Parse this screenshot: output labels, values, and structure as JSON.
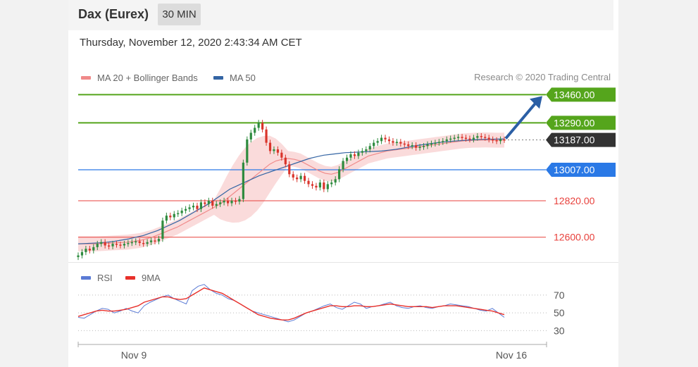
{
  "header": {
    "instrument": "Dax (Eurex)",
    "timeframe": "30 MIN"
  },
  "timestamp": "Thursday, November 12, 2020 2:43:34 AM CET",
  "legend": {
    "ma20_label": "MA 20 + Bollinger Bands",
    "ma50_label": "MA 50",
    "attribution": "Research © 2020 Trading Central"
  },
  "rsi_legend": {
    "rsi_label": "RSI",
    "ma_label": "9MA"
  },
  "colors": {
    "ma20": "#f08a8a",
    "ma50": "#3465a4",
    "target_green": "#55a51c",
    "pivot_blue": "#2a79e6",
    "support_red": "#e8413c",
    "last_price_bg": "#333333",
    "up_candle": "#2e8b3e",
    "down_candle": "#d9342b",
    "bollinger_fill": "#f9d2d2",
    "rsi_line": "#5b7bd5",
    "rsi_ma": "#e8302a"
  },
  "chart_data": [
    {
      "type": "candlestick",
      "x_labels": [
        "Nov 9",
        "Nov 16"
      ],
      "ylim": [
        12450,
        13500
      ],
      "levels": [
        {
          "value": 13460.0,
          "label": "13460.00",
          "kind": "target"
        },
        {
          "value": 13290.0,
          "label": "13290.00",
          "kind": "target"
        },
        {
          "value": 13187.0,
          "label": "13187.00",
          "kind": "last"
        },
        {
          "value": 13007.0,
          "label": "13007.00",
          "kind": "pivot"
        },
        {
          "value": 12820.0,
          "label": "12820.00",
          "kind": "support"
        },
        {
          "value": 12600.0,
          "label": "12600.00",
          "kind": "support"
        }
      ],
      "close": [
        12490,
        12510,
        12530,
        12520,
        12540,
        12560,
        12570,
        12550,
        12545,
        12560,
        12555,
        12550,
        12560,
        12565,
        12570,
        12575,
        12565,
        12560,
        12570,
        12580,
        12575,
        12590,
        12700,
        12730,
        12720,
        12740,
        12745,
        12760,
        12770,
        12780,
        12790,
        12770,
        12810,
        12800,
        12820,
        12790,
        12800,
        12810,
        12820,
        12805,
        12820,
        12815,
        12830,
        13050,
        13190,
        13230,
        13260,
        13290,
        13250,
        13170,
        13120,
        13130,
        13110,
        13080,
        13040,
        12980,
        12960,
        12950,
        12970,
        12940,
        12920,
        12910,
        12900,
        12930,
        12890,
        12920,
        12930,
        12950,
        13010,
        13060,
        13080,
        13100,
        13090,
        13110,
        13120,
        13130,
        13150,
        13170,
        13180,
        13200,
        13190,
        13180,
        13170,
        13175,
        13165,
        13160,
        13150,
        13155,
        13140,
        13145,
        13150,
        13160,
        13165,
        13170,
        13175,
        13180,
        13190,
        13195,
        13200,
        13205,
        13200,
        13195,
        13190,
        13200,
        13210,
        13205,
        13200,
        13190,
        13185,
        13180,
        13190,
        13187
      ],
      "ma20": [
        12560,
        12560,
        12560,
        12560,
        12562,
        12564,
        12566,
        12568,
        12570,
        12575,
        12580,
        12590,
        12600,
        12615,
        12630,
        12645,
        12660,
        12680,
        12700,
        12720,
        12740,
        12760,
        12780,
        12800,
        12830,
        12860,
        12890,
        12920,
        12950,
        12980,
        13010,
        13040,
        13060,
        13070,
        13075,
        13070,
        13060,
        13040,
        13020,
        13000,
        12985,
        12980,
        12990,
        13010,
        13030,
        13050,
        13070,
        13090,
        13100,
        13110,
        13120,
        13125,
        13130,
        13135,
        13140,
        13145,
        13150,
        13155,
        13160,
        13165,
        13170,
        13175,
        13180,
        13183,
        13185,
        13186,
        13187,
        13186,
        13185,
        13186
      ],
      "ma50": [
        12560,
        12562,
        12564,
        12566,
        12570,
        12575,
        12582,
        12590,
        12600,
        12610,
        12625,
        12640,
        12660,
        12680,
        12700,
        12725,
        12750,
        12775,
        12800,
        12830,
        12860,
        12890,
        12910,
        12930,
        12950,
        12970,
        12985,
        13000,
        13015,
        13030,
        13045,
        13060,
        13075,
        13085,
        13095,
        13100,
        13105,
        13110,
        13112,
        13114,
        13116,
        13118,
        13120,
        13125,
        13130,
        13138,
        13146,
        13154,
        13160,
        13166,
        13172,
        13176,
        13180,
        13183,
        13186,
        13188,
        13190,
        13191,
        13192,
        13193
      ],
      "tick_label": "13187.00"
    },
    {
      "type": "line",
      "title": "",
      "y_ticks": [
        70,
        50,
        30
      ],
      "ylim": [
        20,
        85
      ],
      "series": [
        {
          "name": "RSI",
          "values": [
            45,
            44,
            48,
            52,
            55,
            54,
            50,
            52,
            55,
            52,
            50,
            58,
            62,
            65,
            68,
            70,
            66,
            63,
            60,
            75,
            80,
            82,
            76,
            72,
            70,
            66,
            64,
            60,
            56,
            52,
            50,
            48,
            46,
            44,
            42,
            40,
            42,
            46,
            50,
            52,
            55,
            58,
            60,
            56,
            54,
            58,
            62,
            60,
            55,
            57,
            58,
            60,
            62,
            58,
            56,
            55,
            57,
            58,
            56,
            55,
            57,
            58,
            60,
            59,
            58,
            57,
            55,
            53,
            52,
            55,
            50,
            45
          ]
        },
        {
          "name": "9MA",
          "values": [
            46,
            48,
            50,
            52,
            53,
            52,
            52,
            53,
            54,
            56,
            58,
            62,
            64,
            66,
            68,
            68,
            66,
            65,
            66,
            70,
            74,
            78,
            76,
            74,
            72,
            68,
            64,
            60,
            56,
            52,
            48,
            46,
            44,
            43,
            42,
            42,
            44,
            47,
            50,
            52,
            54,
            56,
            58,
            58,
            57,
            57,
            58,
            58,
            57,
            57,
            58,
            59,
            60,
            59,
            58,
            57,
            57,
            57,
            57,
            56,
            57,
            58,
            58,
            58,
            57,
            56,
            55,
            54,
            53,
            52,
            50,
            48
          ]
        }
      ]
    }
  ]
}
